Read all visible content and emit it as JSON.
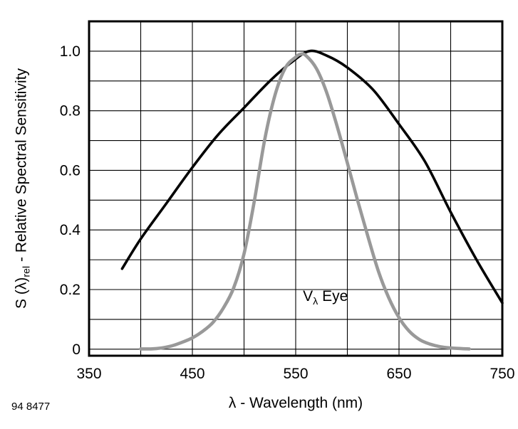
{
  "figure": {
    "id_label": "94 8477"
  },
  "chart_data": {
    "type": "line",
    "title": "",
    "xlabel": "λ - Wavelength (nm)",
    "ylabel_prefix": "S (λ)",
    "ylabel_sub": "rel",
    "ylabel_suffix": " - Relative Spectral Sensitivity",
    "xlim": [
      350,
      750
    ],
    "ylim": [
      -0.022,
      1.1
    ],
    "grid": true,
    "legend_position": "none",
    "x_gridlines": [
      400,
      450,
      500,
      550,
      600,
      650,
      700
    ],
    "y_gridlines": [
      0,
      0.1,
      0.2,
      0.3,
      0.4,
      0.5,
      0.6,
      0.7,
      0.8,
      0.9,
      1.0
    ],
    "x_tick_labels": [
      {
        "value": 350,
        "label": "350"
      },
      {
        "value": 450,
        "label": "450"
      },
      {
        "value": 550,
        "label": "550"
      },
      {
        "value": 650,
        "label": "650"
      },
      {
        "value": 750,
        "label": "750"
      }
    ],
    "y_tick_labels": [
      {
        "value": 0.0,
        "label": "0"
      },
      {
        "value": 0.2,
        "label": "0.2"
      },
      {
        "value": 0.4,
        "label": "0.4"
      },
      {
        "value": 0.6,
        "label": "0.6"
      },
      {
        "value": 0.8,
        "label": "0.8"
      },
      {
        "value": 1.0,
        "label": "1.0"
      }
    ],
    "annotation": {
      "text_prefix": "V",
      "text_sub": "λ",
      "text_suffix": " Eye",
      "x": 557,
      "y": 0.205
    },
    "series": [
      {
        "name": "detector-sensitivity",
        "color": "#000000",
        "width": 3.6,
        "points": [
          [
            382,
            0.27
          ],
          [
            400,
            0.37
          ],
          [
            425,
            0.49
          ],
          [
            450,
            0.61
          ],
          [
            475,
            0.72
          ],
          [
            500,
            0.81
          ],
          [
            525,
            0.9
          ],
          [
            545,
            0.96
          ],
          [
            563,
            1.0
          ],
          [
            580,
            0.985
          ],
          [
            600,
            0.945
          ],
          [
            625,
            0.87
          ],
          [
            650,
            0.755
          ],
          [
            675,
            0.63
          ],
          [
            700,
            0.46
          ],
          [
            725,
            0.3
          ],
          [
            750,
            0.155
          ]
        ]
      },
      {
        "name": "v-lambda-eye",
        "color": "#999999",
        "width": 4.6,
        "points": [
          [
            400,
            0.001
          ],
          [
            410,
            0.001
          ],
          [
            420,
            0.004
          ],
          [
            430,
            0.011
          ],
          [
            440,
            0.023
          ],
          [
            450,
            0.038
          ],
          [
            460,
            0.06
          ],
          [
            470,
            0.09
          ],
          [
            480,
            0.138
          ],
          [
            490,
            0.206
          ],
          [
            500,
            0.32
          ],
          [
            510,
            0.498
          ],
          [
            520,
            0.703
          ],
          [
            530,
            0.853
          ],
          [
            540,
            0.944
          ],
          [
            550,
            0.98
          ],
          [
            555,
            0.99
          ],
          [
            560,
            0.985
          ],
          [
            570,
            0.942
          ],
          [
            580,
            0.861
          ],
          [
            590,
            0.749
          ],
          [
            600,
            0.625
          ],
          [
            610,
            0.498
          ],
          [
            620,
            0.377
          ],
          [
            630,
            0.262
          ],
          [
            640,
            0.173
          ],
          [
            650,
            0.106
          ],
          [
            660,
            0.06
          ],
          [
            670,
            0.032
          ],
          [
            680,
            0.017
          ],
          [
            690,
            0.008
          ],
          [
            700,
            0.004
          ],
          [
            710,
            0.002
          ],
          [
            718,
            0.001
          ]
        ]
      }
    ]
  }
}
